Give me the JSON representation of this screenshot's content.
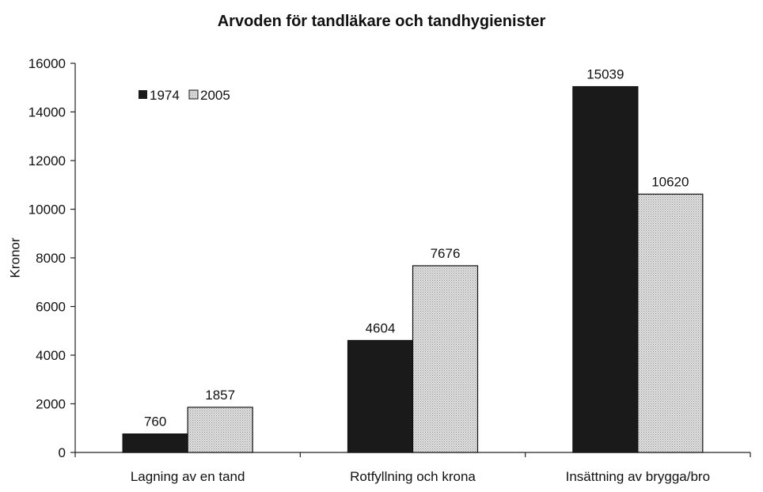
{
  "colors": {
    "series_1974": "#1a1a1a",
    "series_2005_base": "#e4e4e4",
    "series_2005_dots": "#8a8a8a",
    "axis": "#222222",
    "bar_stroke": "#111111"
  },
  "chart_data": {
    "type": "bar",
    "title": "Arvoden för tandläkare och tandhygienister",
    "xlabel": "",
    "ylabel": "Kronor",
    "ylim": [
      0,
      16000
    ],
    "yticks": [
      "0",
      "2000",
      "4000",
      "6000",
      "8000",
      "10000",
      "12000",
      "14000",
      "16000"
    ],
    "categories": [
      "Lagning av en tand",
      "Rotfyllning och krona",
      "Insättning av brygga/bro"
    ],
    "series": [
      {
        "name": "1974",
        "values": [
          760,
          4604,
          15039
        ],
        "labels": [
          "760",
          "4604",
          "15039"
        ],
        "pattern": "solid"
      },
      {
        "name": "2005",
        "values": [
          1857,
          7676,
          10620
        ],
        "labels": [
          "1857",
          "7676",
          "10620"
        ],
        "pattern": "dotted"
      }
    ],
    "legend_position": "top-left",
    "grid": false
  }
}
